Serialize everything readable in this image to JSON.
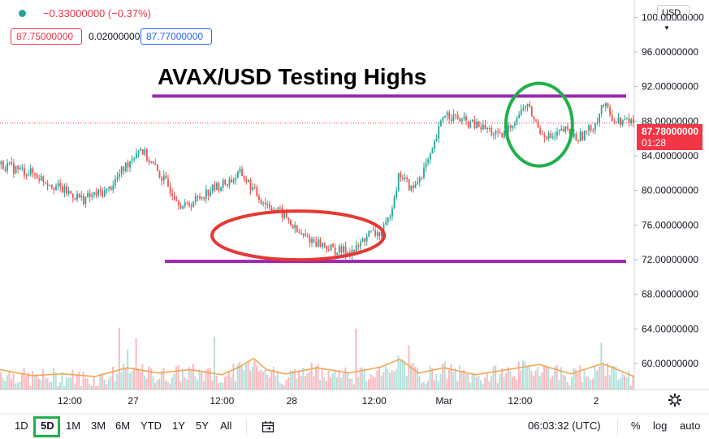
{
  "header": {
    "status_dot_color": "#26a69a",
    "change_text": "−0.33000000 (−0.37%)",
    "change_color": "#f23645",
    "bid": "87.75000000",
    "spread": "0.02000000",
    "ask": "87.77000000",
    "bid_color": "#f23645",
    "ask_color": "#2962ff"
  },
  "annotation": {
    "title": "AVAX/USD Testing Highs"
  },
  "currency_selector": {
    "label": "USD",
    "icon": "chevron-down-icon"
  },
  "price_axis": {
    "labels": [
      "100.00000000",
      "96.00000000",
      "92.00000000",
      "88.00000000",
      "84.00000000",
      "80.00000000",
      "76.00000000",
      "72.00000000",
      "68.00000000",
      "64.00000000",
      "60.00000000"
    ],
    "current_price": "87.78000000",
    "countdown": "01:28",
    "current_color": "#f23645"
  },
  "time_axis": {
    "labels": [
      "12:00",
      "27",
      "12:00",
      "28",
      "12:00",
      "Mar",
      "12:00",
      "2"
    ]
  },
  "bottom_toolbar": {
    "timeframes": [
      "1D",
      "5D",
      "1M",
      "3M",
      "6M",
      "YTD",
      "1Y",
      "5Y",
      "All"
    ],
    "selected": "5D",
    "range_icon": "date-range-icon",
    "clock": "06:03:32 (UTC)",
    "percent_label": "%",
    "log_label": "log",
    "auto_label": "auto",
    "settings_icon": "gear-icon"
  },
  "chart_data": {
    "type": "candlestick",
    "symbol": "AVAX/USD",
    "ylim": [
      57,
      102
    ],
    "price_path": [
      [
        0,
        83
      ],
      [
        5,
        82
      ],
      [
        10,
        80
      ],
      [
        13,
        79
      ],
      [
        17,
        80
      ],
      [
        20,
        83
      ],
      [
        22,
        85
      ],
      [
        24,
        83
      ],
      [
        26,
        81
      ],
      [
        29,
        78
      ],
      [
        33,
        80
      ],
      [
        36,
        81
      ],
      [
        38,
        82
      ],
      [
        41,
        79
      ],
      [
        43,
        78
      ],
      [
        45,
        77
      ],
      [
        47,
        75
      ],
      [
        50,
        74
      ],
      [
        53,
        73
      ],
      [
        56,
        73
      ],
      [
        58,
        75
      ],
      [
        60,
        75
      ],
      [
        61,
        76
      ],
      [
        63,
        82
      ],
      [
        65,
        80
      ],
      [
        68,
        84
      ],
      [
        70,
        89
      ],
      [
        73,
        88
      ],
      [
        77,
        87
      ],
      [
        79,
        86
      ],
      [
        81,
        88
      ],
      [
        83,
        90
      ],
      [
        85,
        87
      ],
      [
        87,
        86
      ],
      [
        89,
        87
      ],
      [
        91,
        86
      ],
      [
        93,
        87
      ],
      [
        94,
        88
      ],
      [
        95,
        90
      ],
      [
        97,
        88
      ],
      [
        100,
        88
      ]
    ],
    "volume_path": [
      [
        0,
        59.0
      ],
      [
        5,
        58.3
      ],
      [
        10,
        58.5
      ],
      [
        15,
        58.2
      ],
      [
        20,
        59.2
      ],
      [
        25,
        58.6
      ],
      [
        30,
        59.0
      ],
      [
        35,
        58.4
      ],
      [
        38,
        59.4
      ],
      [
        40,
        60.3
      ],
      [
        42,
        59.0
      ],
      [
        45,
        58.5
      ],
      [
        50,
        59.2
      ],
      [
        55,
        58.6
      ],
      [
        60,
        59.3
      ],
      [
        63,
        60.2
      ],
      [
        66,
        58.6
      ],
      [
        70,
        59.2
      ],
      [
        75,
        58.4
      ],
      [
        80,
        59.0
      ],
      [
        85,
        59.6
      ],
      [
        90,
        58.5
      ],
      [
        95,
        59.7
      ],
      [
        100,
        58.2
      ]
    ],
    "horizontal_lines": [
      {
        "price": 90.9,
        "x_range": [
          24,
          100
        ],
        "color": "#9c27b0"
      },
      {
        "price": 71.8,
        "x_range": [
          26,
          100
        ],
        "color": "#9c27b0"
      }
    ],
    "last_price_line": {
      "price": 87.78,
      "color": "#f23645"
    },
    "ellipses": [
      {
        "center_x": 47,
        "center_price": 74.8,
        "color": "#e53935"
      },
      {
        "center_x": 85,
        "center_price": 87.6,
        "color": "#21b04b"
      }
    ]
  }
}
